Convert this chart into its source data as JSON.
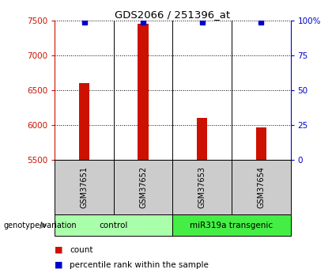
{
  "title": "GDS2066 / 251396_at",
  "samples": [
    "GSM37651",
    "GSM37652",
    "GSM37653",
    "GSM37654"
  ],
  "counts": [
    6600,
    7450,
    6100,
    5960
  ],
  "percentile_ranks": [
    99,
    99,
    99,
    99
  ],
  "ylim_left": [
    5500,
    7500
  ],
  "ylim_right": [
    0,
    100
  ],
  "yticks_left": [
    5500,
    6000,
    6500,
    7000,
    7500
  ],
  "yticks_right": [
    0,
    25,
    50,
    75,
    100
  ],
  "groups": [
    {
      "label": "control",
      "indices": [
        0,
        1
      ],
      "color": "#AAFFAA"
    },
    {
      "label": "miR319a transgenic",
      "indices": [
        2,
        3
      ],
      "color": "#44EE44"
    }
  ],
  "bar_color": "#CC1100",
  "blue_color": "#0000CC",
  "left_axis_color": "#CC1100",
  "right_axis_color": "#0000CC",
  "cell_bg_color": "#CCCCCC",
  "bar_width": 0.18,
  "genotype_label": "genotype/variation",
  "legend_items": [
    {
      "color": "#CC1100",
      "label": "count"
    },
    {
      "color": "#0000CC",
      "label": "percentile rank within the sample"
    }
  ]
}
